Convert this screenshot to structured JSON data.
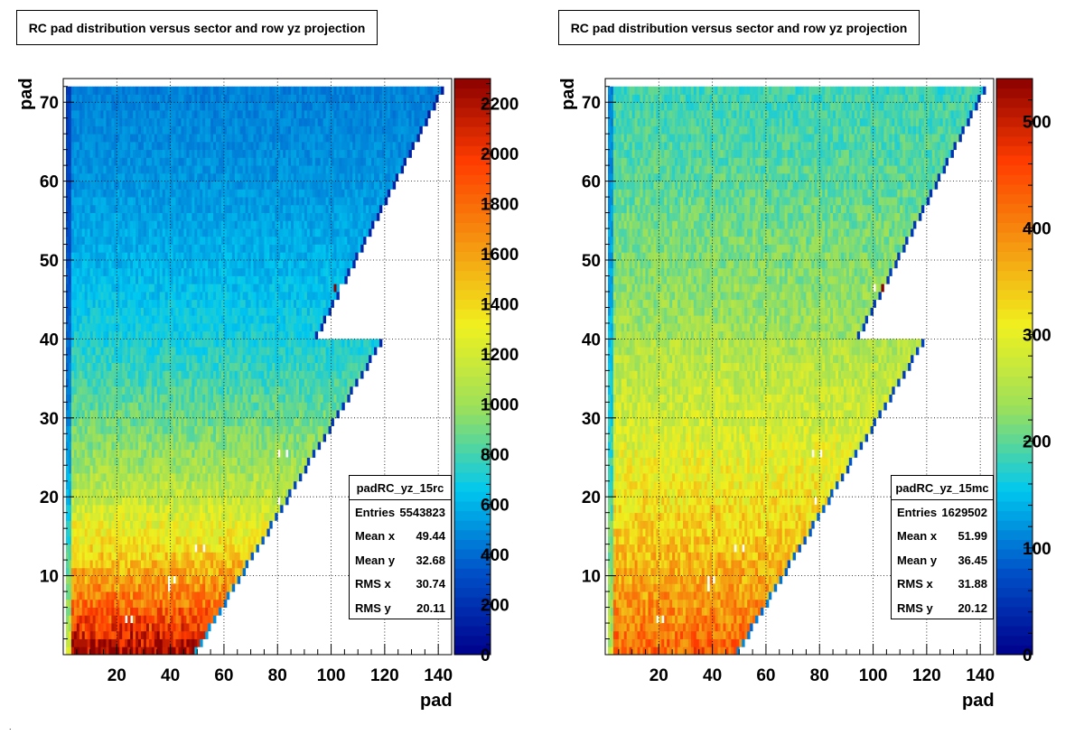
{
  "figure": {
    "stray_mark": "."
  },
  "chart_data": [
    {
      "type": "heatmap",
      "title": "RC pad distribution versus sector and row yz projection",
      "xlabel": "pad",
      "ylabel": "pad",
      "xlim": [
        0,
        145
      ],
      "ylim": [
        0,
        73
      ],
      "x_ticks": [
        20,
        40,
        60,
        80,
        100,
        120,
        140
      ],
      "y_ticks": [
        10,
        20,
        30,
        40,
        50,
        60,
        70
      ],
      "z_max": 2300,
      "z_ticks": [
        0,
        200,
        400,
        600,
        800,
        1000,
        1200,
        1400,
        1600,
        1800,
        2000,
        2200
      ],
      "colorscale": [
        "#00008b",
        "#0050c8",
        "#00c8f0",
        "#9be05a",
        "#f0f01e",
        "#f59610",
        "#ff3c00",
        "#8b0000"
      ],
      "grid": true,
      "stats": {
        "name": "padRC_yz_15rc",
        "rows": [
          {
            "label": "Entries",
            "value": "5543823"
          },
          {
            "label": "Mean x",
            "value": "49.44"
          },
          {
            "label": "Mean y",
            "value": "32.68"
          },
          {
            "label": "RMS x",
            "value": "30.74"
          },
          {
            "label": "RMS y",
            "value": "20.11"
          }
        ]
      },
      "shape": {
        "outer_rows": [
          41,
          72
        ],
        "outer_pad_max_at_row41": 95,
        "outer_pad_max_at_row72": 142,
        "inner_rows": [
          1,
          40
        ],
        "inner_pad_max_at_row1": 50,
        "inner_pad_max_at_row40": 119
      },
      "intensity_profile": {
        "by_row": [
          [
            1,
            2250
          ],
          [
            5,
            1900
          ],
          [
            10,
            1600
          ],
          [
            15,
            1350
          ],
          [
            20,
            1150
          ],
          [
            25,
            1000
          ],
          [
            30,
            900
          ],
          [
            35,
            800
          ],
          [
            40,
            720
          ],
          [
            41,
            700
          ],
          [
            50,
            600
          ],
          [
            60,
            520
          ],
          [
            72,
            460
          ]
        ],
        "left_edge_scale": 0.55
      },
      "hot_spots": [
        {
          "x": 102,
          "y": 47,
          "value": 2300
        }
      ],
      "dead_pads": [
        {
          "x": 24,
          "y": 5
        },
        {
          "x": 26,
          "y": 5
        },
        {
          "x": 50,
          "y": 14
        },
        {
          "x": 53,
          "y": 14
        },
        {
          "x": 40,
          "y": 10
        },
        {
          "x": 42,
          "y": 10
        },
        {
          "x": 40,
          "y": 9
        },
        {
          "x": 81,
          "y": 26
        },
        {
          "x": 84,
          "y": 26
        },
        {
          "x": 104,
          "y": 47
        },
        {
          "x": 81,
          "y": 20
        }
      ]
    },
    {
      "type": "heatmap",
      "title": "RC pad distribution versus sector and row yz projection",
      "xlabel": "pad",
      "ylabel": "pad",
      "xlim": [
        0,
        145
      ],
      "ylim": [
        0,
        73
      ],
      "x_ticks": [
        20,
        40,
        60,
        80,
        100,
        120,
        140
      ],
      "y_ticks": [
        10,
        20,
        30,
        40,
        50,
        60,
        70
      ],
      "z_max": 540,
      "z_ticks": [
        0,
        100,
        200,
        300,
        400,
        500
      ],
      "colorscale": [
        "#00008b",
        "#0050c8",
        "#00c8f0",
        "#9be05a",
        "#f0f01e",
        "#f59610",
        "#ff3c00",
        "#8b0000"
      ],
      "grid": true,
      "stats": {
        "name": "padRC_yz_15mc",
        "rows": [
          {
            "label": "Entries",
            "value": "1629502"
          },
          {
            "label": "Mean x",
            "value": "51.99"
          },
          {
            "label": "Mean y",
            "value": "36.45"
          },
          {
            "label": "RMS x",
            "value": "31.88"
          },
          {
            "label": "RMS y",
            "value": "20.12"
          }
        ]
      },
      "shape": {
        "outer_rows": [
          41,
          72
        ],
        "outer_pad_max_at_row41": 95,
        "outer_pad_max_at_row72": 142,
        "inner_rows": [
          1,
          40
        ],
        "inner_pad_max_at_row1": 50,
        "inner_pad_max_at_row40": 119
      },
      "intensity_profile": {
        "by_row": [
          [
            1,
            430
          ],
          [
            5,
            400
          ],
          [
            10,
            370
          ],
          [
            15,
            345
          ],
          [
            20,
            320
          ],
          [
            25,
            300
          ],
          [
            30,
            280
          ],
          [
            35,
            265
          ],
          [
            40,
            250
          ],
          [
            41,
            240
          ],
          [
            50,
            220
          ],
          [
            60,
            200
          ],
          [
            72,
            185
          ]
        ],
        "left_edge_scale": 0.6
      },
      "hot_spots": [
        {
          "x": 104,
          "y": 47,
          "value": 540
        }
      ],
      "dead_pads": [
        {
          "x": 20,
          "y": 5
        },
        {
          "x": 22,
          "y": 5
        },
        {
          "x": 49,
          "y": 14
        },
        {
          "x": 52,
          "y": 14
        },
        {
          "x": 39,
          "y": 10
        },
        {
          "x": 41,
          "y": 10
        },
        {
          "x": 39,
          "y": 9
        },
        {
          "x": 78,
          "y": 26
        },
        {
          "x": 81,
          "y": 26
        },
        {
          "x": 101,
          "y": 47
        },
        {
          "x": 79,
          "y": 20
        }
      ]
    }
  ]
}
